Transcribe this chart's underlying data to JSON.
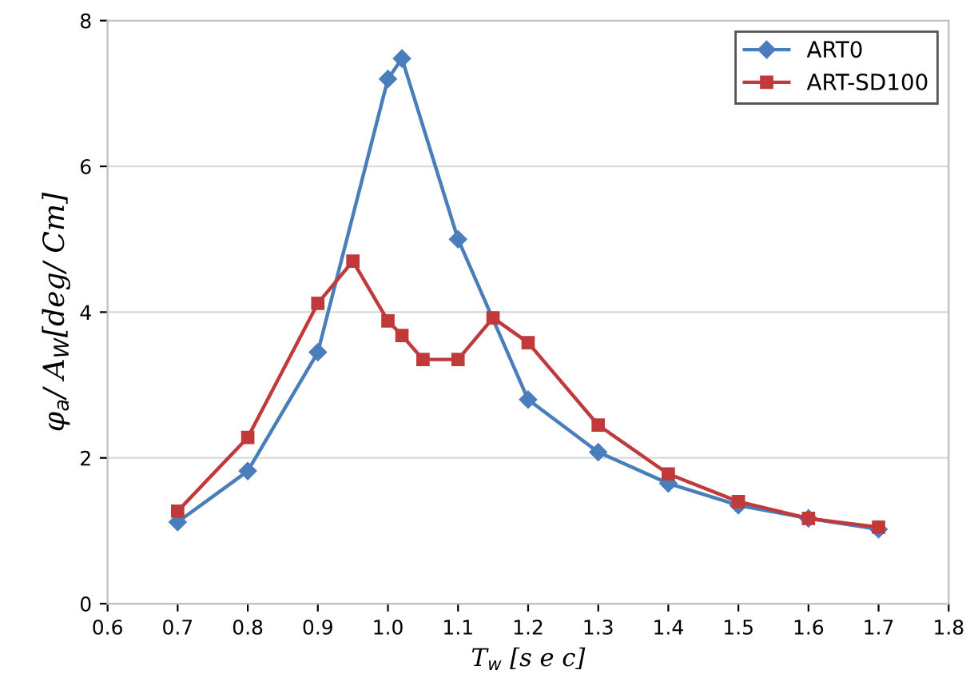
{
  "chart_data": {
    "type": "line",
    "xlabel": "T$_{w}$ [s e c]",
    "ylabel": "φ$_{a}$/ A$_{W}$[deg/ Cm]",
    "xlim": [
      0.6,
      1.8
    ],
    "xticks": [
      0.6,
      0.7,
      0.8,
      0.9,
      {
        "value": 1.0,
        "label": "1.0"
      },
      1.1,
      1.2,
      1.3,
      1.4,
      1.5,
      1.6,
      1.7,
      1.8
    ],
    "ylim": [
      0,
      8
    ],
    "yticks": [
      0,
      2,
      4,
      6,
      8
    ],
    "grid": "y",
    "legend": "top right",
    "series": [
      {
        "name": "ART0",
        "color": "#4a7ebb",
        "marker": "diamond",
        "x": [
          0.7,
          0.8,
          0.9,
          1.0,
          1.02,
          1.1,
          1.2,
          1.3,
          1.4,
          1.5,
          1.6,
          1.7
        ],
        "values": [
          1.12,
          1.82,
          3.45,
          7.2,
          7.48,
          5.0,
          2.8,
          2.08,
          1.65,
          1.35,
          1.17,
          1.02
        ]
      },
      {
        "name": "ART-SD100",
        "color": "#c0393b",
        "marker": "square",
        "x": [
          0.7,
          0.8,
          0.9,
          0.95,
          1.0,
          1.02,
          1.05,
          1.1,
          1.15,
          1.2,
          1.3,
          1.4,
          1.5,
          1.6,
          1.7
        ],
        "values": [
          1.27,
          2.28,
          4.12,
          4.7,
          3.88,
          3.68,
          3.35,
          3.35,
          3.92,
          3.58,
          2.45,
          1.78,
          1.4,
          1.17,
          1.05
        ]
      }
    ]
  }
}
